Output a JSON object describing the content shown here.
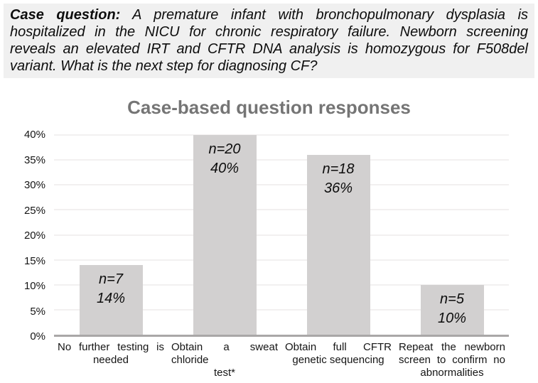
{
  "question": {
    "lead": "Case question:",
    "lines": [
      " A premature infant with bronchopulmonary dysplasia is",
      "hospitalized in the NICU for chronic respiratory failure. Newborn screening",
      "reveals an elevated IRT and CFTR DNA analysis is homozygous for F508del",
      "variant. What is the next step for diagnosing CF?"
    ]
  },
  "chart_data": {
    "type": "bar",
    "title": "Case-based question responses",
    "categories": [
      "No further testing is needed",
      "Obtain a sweat chloride test*",
      "Obtain full CFTR genetic sequencing",
      "Repeat the newborn screen to confirm no abnormalities"
    ],
    "category_lines": [
      [
        "No further testing is",
        "needed"
      ],
      [
        "Obtain a sweat chloride",
        "test*"
      ],
      [
        "Obtain full CFTR",
        "genetic sequencing"
      ],
      [
        "Repeat the newborn",
        "screen to confirm no",
        "abnormalities"
      ]
    ],
    "counts": [
      7,
      20,
      18,
      5
    ],
    "values": [
      14,
      40,
      36,
      10
    ],
    "bar_labels": [
      [
        "n=7",
        "14%"
      ],
      [
        "n=20",
        "40%"
      ],
      [
        "n=18",
        "36%"
      ],
      [
        "n=5",
        "10%"
      ]
    ],
    "xlabel": "",
    "ylabel": "",
    "ylim": [
      0,
      40
    ],
    "yticks": [
      {
        "value": 0,
        "label": "0%"
      },
      {
        "value": 5,
        "label": "5%"
      },
      {
        "value": 10,
        "label": "10%"
      },
      {
        "value": 15,
        "label": "15%"
      },
      {
        "value": 20,
        "label": "20%"
      },
      {
        "value": 25,
        "label": "25%"
      },
      {
        "value": 30,
        "label": "30%"
      },
      {
        "value": 35,
        "label": "35%"
      },
      {
        "value": 40,
        "label": "40%"
      }
    ],
    "grid": "horizontal",
    "legend": "none",
    "colors": {
      "question_bg": "#f0f0f0",
      "title_text": "#757575",
      "bar_fill": "#d2d0d0",
      "gridline": "#f2f0f0",
      "axis_line": "#a9a7a7",
      "text": "#111111"
    }
  }
}
